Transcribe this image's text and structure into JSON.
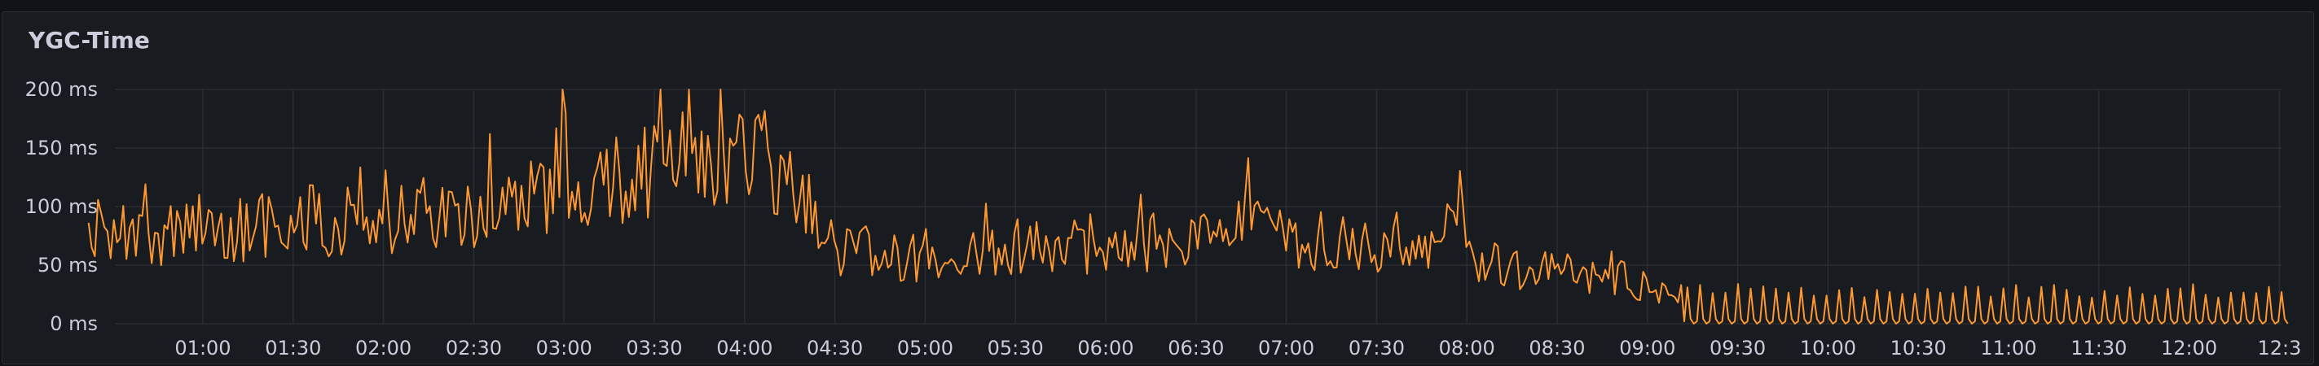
{
  "panel": {
    "title": "YGC-Time"
  },
  "chart_data": {
    "type": "line",
    "title": "YGC-Time",
    "xlabel": "",
    "ylabel": "",
    "x_range": [
      "00:22",
      "12:33"
    ],
    "ylim": [
      0,
      200
    ],
    "y_ticks": [
      {
        "value": 0,
        "label": "0 ms"
      },
      {
        "value": 50,
        "label": "50 ms"
      },
      {
        "value": 100,
        "label": "100 ms"
      },
      {
        "value": 150,
        "label": "150 ms"
      },
      {
        "value": 200,
        "label": "200 ms"
      }
    ],
    "x_ticks": [
      "01:00",
      "01:30",
      "02:00",
      "02:30",
      "03:00",
      "03:30",
      "04:00",
      "04:30",
      "05:00",
      "05:30",
      "06:00",
      "06:30",
      "07:00",
      "07:30",
      "08:00",
      "08:30",
      "09:00",
      "09:30",
      "10:00",
      "10:30",
      "11:00",
      "11:30",
      "12:00",
      "12:3"
    ],
    "grid": true,
    "legend": "none",
    "series_color": "#ff9830",
    "series": [
      {
        "x": [
          "00:22",
          "00:32",
          "00:42",
          "00:52",
          "01:02",
          "01:12",
          "01:22",
          "01:32",
          "01:42",
          "01:52",
          "02:02",
          "02:12",
          "02:22",
          "02:32",
          "02:42",
          "02:52",
          "02:57",
          "03:00",
          "03:02",
          "03:12",
          "03:22",
          "03:32",
          "03:42",
          "03:52",
          "03:57",
          "04:02",
          "04:12",
          "04:22",
          "04:27",
          "04:32",
          "04:42",
          "04:52",
          "05:02",
          "05:12",
          "05:22",
          "05:32",
          "05:42",
          "05:52",
          "06:02",
          "06:12",
          "06:22",
          "06:32",
          "06:42",
          "06:48",
          "06:52",
          "07:02",
          "07:12",
          "07:22",
          "07:32",
          "07:42",
          "07:52",
          "07:57",
          "08:02",
          "08:12",
          "08:22",
          "08:32",
          "08:42",
          "08:52",
          "09:02",
          "09:07",
          "09:12",
          "09:22",
          "09:32",
          "09:42",
          "09:52",
          "10:02",
          "10:12",
          "10:22",
          "10:32",
          "10:42",
          "10:52",
          "11:02",
          "11:12",
          "11:22",
          "11:32",
          "11:42",
          "11:52",
          "12:02",
          "12:12",
          "12:22",
          "12:33"
        ],
        "values": [
          65,
          75,
          70,
          80,
          85,
          80,
          85,
          90,
          85,
          90,
          85,
          95,
          90,
          100,
          105,
          105,
          110,
          165,
          125,
          120,
          125,
          135,
          140,
          145,
          150,
          140,
          120,
          110,
          75,
          65,
          60,
          55,
          60,
          60,
          60,
          65,
          65,
          65,
          70,
          70,
          70,
          70,
          65,
          105,
          75,
          70,
          70,
          65,
          60,
          60,
          60,
          125,
          60,
          50,
          45,
          45,
          40,
          40,
          30,
          25,
          25,
          20,
          18,
          15,
          15,
          15,
          15,
          15,
          15,
          15,
          15,
          15,
          15,
          15,
          15,
          15,
          15,
          15,
          15,
          15,
          15
        ]
      }
    ]
  }
}
